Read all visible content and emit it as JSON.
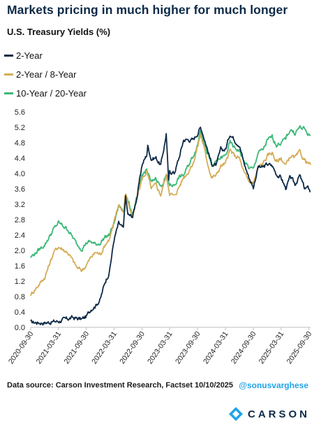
{
  "title": "Markets pricing in much higher for much longer",
  "source": "Data source: Carson Investment Research, Factset   10/10/2025",
  "handle": "@sonusvarghese",
  "brand": {
    "name": "CARSON",
    "colors": [
      "#0e2a47",
      "#1fa4ea",
      "#3cb878"
    ]
  },
  "chart_data": {
    "type": "line",
    "title": "U.S. Treasury Yields (%)",
    "xlabel": "",
    "ylabel": "",
    "xlim": [
      "2020-09-30",
      "2025-10-10"
    ],
    "ylim": [
      0,
      5.6
    ],
    "y_ticks": [
      "0.0",
      "0.4",
      "0.8",
      "1.2",
      "1.6",
      "2.0",
      "2.4",
      "2.8",
      "3.2",
      "3.6",
      "4.0",
      "4.4",
      "4.8",
      "5.2",
      "5.6"
    ],
    "x_ticks": [
      "2020-09-30",
      "2021-03-31",
      "2021-09-30",
      "2022-03-31",
      "2022-09-30",
      "2023-03-31",
      "2023-09-30",
      "2024-03-31",
      "2024-09-30",
      "2025-03-31",
      "2025-09-30"
    ],
    "grid": false,
    "legend_position": "top-left",
    "series": [
      {
        "name": "2-Year",
        "color": "#0e2a47",
        "points": [
          [
            "2020-09-30",
            0.13
          ],
          [
            "2020-12-31",
            0.12
          ],
          [
            "2021-03-31",
            0.16
          ],
          [
            "2021-06-30",
            0.25
          ],
          [
            "2021-08-31",
            0.21
          ],
          [
            "2021-09-30",
            0.28
          ],
          [
            "2021-10-31",
            0.48
          ],
          [
            "2021-11-30",
            0.57
          ],
          [
            "2021-12-31",
            0.73
          ],
          [
            "2022-01-31",
            1.18
          ],
          [
            "2022-02-28",
            1.44
          ],
          [
            "2022-03-31",
            2.28
          ],
          [
            "2022-04-30",
            2.7
          ],
          [
            "2022-05-31",
            2.56
          ],
          [
            "2022-06-14",
            3.4
          ],
          [
            "2022-06-30",
            2.92
          ],
          [
            "2022-07-31",
            2.88
          ],
          [
            "2022-08-31",
            3.45
          ],
          [
            "2022-09-30",
            4.22
          ],
          [
            "2022-10-31",
            4.48
          ],
          [
            "2022-11-07",
            4.72
          ],
          [
            "2022-11-30",
            4.38
          ],
          [
            "2022-12-31",
            4.41
          ],
          [
            "2023-01-31",
            4.21
          ],
          [
            "2023-02-28",
            4.81
          ],
          [
            "2023-03-08",
            5.05
          ],
          [
            "2023-03-24",
            3.78
          ],
          [
            "2023-03-31",
            4.06
          ],
          [
            "2023-04-30",
            4.01
          ],
          [
            "2023-05-31",
            4.4
          ],
          [
            "2023-06-30",
            4.87
          ],
          [
            "2023-07-31",
            4.88
          ],
          [
            "2023-08-31",
            4.87
          ],
          [
            "2023-09-30",
            5.05
          ],
          [
            "2023-10-19",
            5.19
          ],
          [
            "2023-10-31",
            5.09
          ],
          [
            "2023-11-30",
            4.68
          ],
          [
            "2023-12-31",
            4.25
          ],
          [
            "2024-01-31",
            4.21
          ],
          [
            "2024-02-29",
            4.62
          ],
          [
            "2024-03-31",
            4.62
          ],
          [
            "2024-04-30",
            5.04
          ],
          [
            "2024-05-31",
            4.87
          ],
          [
            "2024-06-30",
            4.75
          ],
          [
            "2024-07-31",
            4.26
          ],
          [
            "2024-08-31",
            3.91
          ],
          [
            "2024-09-30",
            3.64
          ],
          [
            "2024-10-31",
            4.17
          ],
          [
            "2024-11-30",
            4.15
          ],
          [
            "2024-12-31",
            4.24
          ],
          [
            "2025-01-31",
            4.2
          ],
          [
            "2025-02-28",
            3.99
          ],
          [
            "2025-03-31",
            3.89
          ],
          [
            "2025-04-30",
            3.61
          ],
          [
            "2025-05-31",
            3.9
          ],
          [
            "2025-06-30",
            3.72
          ],
          [
            "2025-07-31",
            3.94
          ],
          [
            "2025-08-31",
            3.62
          ],
          [
            "2025-09-30",
            3.61
          ],
          [
            "2025-10-10",
            3.52
          ]
        ]
      },
      {
        "name": "2-Year / 8-Year",
        "color": "#d4ac57",
        "points": [
          [
            "2020-09-30",
            0.85
          ],
          [
            "2020-12-31",
            1.3
          ],
          [
            "2021-02-28",
            1.95
          ],
          [
            "2021-03-31",
            2.1
          ],
          [
            "2021-05-31",
            1.95
          ],
          [
            "2021-07-31",
            1.55
          ],
          [
            "2021-08-31",
            1.48
          ],
          [
            "2021-09-30",
            1.62
          ],
          [
            "2021-10-31",
            1.82
          ],
          [
            "2021-11-30",
            1.95
          ],
          [
            "2021-12-31",
            1.9
          ],
          [
            "2022-01-31",
            2.15
          ],
          [
            "2022-02-28",
            2.3
          ],
          [
            "2022-03-31",
            2.72
          ],
          [
            "2022-04-30",
            3.2
          ],
          [
            "2022-05-31",
            3.0
          ],
          [
            "2022-06-14",
            3.48
          ],
          [
            "2022-07-31",
            2.85
          ],
          [
            "2022-08-31",
            3.4
          ],
          [
            "2022-09-30",
            3.85
          ],
          [
            "2022-10-31",
            4.05
          ],
          [
            "2022-11-30",
            3.6
          ],
          [
            "2022-12-31",
            3.7
          ],
          [
            "2023-01-31",
            3.45
          ],
          [
            "2023-03-08",
            3.95
          ],
          [
            "2023-03-31",
            3.5
          ],
          [
            "2023-04-30",
            3.4
          ],
          [
            "2023-05-31",
            3.65
          ],
          [
            "2023-06-30",
            3.9
          ],
          [
            "2023-07-31",
            4.05
          ],
          [
            "2023-08-31",
            4.25
          ],
          [
            "2023-09-30",
            4.7
          ],
          [
            "2023-10-19",
            5.02
          ],
          [
            "2023-10-31",
            4.85
          ],
          [
            "2023-11-30",
            4.35
          ],
          [
            "2023-12-31",
            3.9
          ],
          [
            "2024-01-31",
            3.95
          ],
          [
            "2024-02-29",
            4.2
          ],
          [
            "2024-03-31",
            4.25
          ],
          [
            "2024-04-30",
            4.6
          ],
          [
            "2024-05-31",
            4.45
          ],
          [
            "2024-06-30",
            4.4
          ],
          [
            "2024-07-31",
            4.0
          ],
          [
            "2024-08-31",
            3.8
          ],
          [
            "2024-09-30",
            3.75
          ],
          [
            "2024-10-31",
            4.15
          ],
          [
            "2024-11-30",
            4.25
          ],
          [
            "2024-12-31",
            4.45
          ],
          [
            "2025-01-31",
            4.55
          ],
          [
            "2025-02-28",
            4.3
          ],
          [
            "2025-03-31",
            4.4
          ],
          [
            "2025-04-30",
            4.2
          ],
          [
            "2025-05-31",
            4.45
          ],
          [
            "2025-06-30",
            4.4
          ],
          [
            "2025-07-31",
            4.55
          ],
          [
            "2025-08-31",
            4.35
          ],
          [
            "2025-09-30",
            4.25
          ],
          [
            "2025-10-10",
            4.22
          ]
        ]
      },
      {
        "name": "10-Year / 20-Year",
        "color": "#3cb878",
        "points": [
          [
            "2020-09-30",
            1.82
          ],
          [
            "2020-12-31",
            2.15
          ],
          [
            "2021-02-28",
            2.55
          ],
          [
            "2021-03-31",
            2.72
          ],
          [
            "2021-05-31",
            2.55
          ],
          [
            "2021-07-31",
            2.15
          ],
          [
            "2021-08-31",
            2.05
          ],
          [
            "2021-09-30",
            2.2
          ],
          [
            "2021-10-31",
            2.22
          ],
          [
            "2021-11-30",
            2.15
          ],
          [
            "2021-12-31",
            2.2
          ],
          [
            "2022-01-31",
            2.35
          ],
          [
            "2022-02-28",
            2.4
          ],
          [
            "2022-03-31",
            2.7
          ],
          [
            "2022-04-30",
            3.15
          ],
          [
            "2022-05-31",
            3.05
          ],
          [
            "2022-06-14",
            3.45
          ],
          [
            "2022-07-31",
            2.95
          ],
          [
            "2022-08-31",
            3.4
          ],
          [
            "2022-09-30",
            3.95
          ],
          [
            "2022-10-31",
            4.1
          ],
          [
            "2022-11-30",
            3.75
          ],
          [
            "2022-12-31",
            3.9
          ],
          [
            "2023-01-31",
            3.65
          ],
          [
            "2023-03-08",
            3.95
          ],
          [
            "2023-03-31",
            3.7
          ],
          [
            "2023-04-30",
            3.7
          ],
          [
            "2023-05-31",
            3.9
          ],
          [
            "2023-06-30",
            3.95
          ],
          [
            "2023-07-31",
            4.2
          ],
          [
            "2023-08-31",
            4.45
          ],
          [
            "2023-09-30",
            4.75
          ],
          [
            "2023-10-19",
            5.15
          ],
          [
            "2023-10-31",
            5.0
          ],
          [
            "2023-11-30",
            4.55
          ],
          [
            "2023-12-31",
            4.2
          ],
          [
            "2024-01-31",
            4.3
          ],
          [
            "2024-02-29",
            4.4
          ],
          [
            "2024-03-31",
            4.45
          ],
          [
            "2024-04-30",
            4.8
          ],
          [
            "2024-05-31",
            4.65
          ],
          [
            "2024-06-30",
            4.6
          ],
          [
            "2024-07-31",
            4.3
          ],
          [
            "2024-08-31",
            4.15
          ],
          [
            "2024-09-30",
            4.1
          ],
          [
            "2024-10-31",
            4.55
          ],
          [
            "2024-11-30",
            4.6
          ],
          [
            "2024-12-31",
            4.85
          ],
          [
            "2025-01-31",
            4.95
          ],
          [
            "2025-02-28",
            4.75
          ],
          [
            "2025-03-31",
            4.8
          ],
          [
            "2025-04-30",
            4.9
          ],
          [
            "2025-05-31",
            5.15
          ],
          [
            "2025-06-30",
            5.05
          ],
          [
            "2025-07-31",
            5.2
          ],
          [
            "2025-08-31",
            5.15
          ],
          [
            "2025-09-30",
            5.0
          ],
          [
            "2025-10-10",
            4.98
          ]
        ]
      }
    ]
  }
}
